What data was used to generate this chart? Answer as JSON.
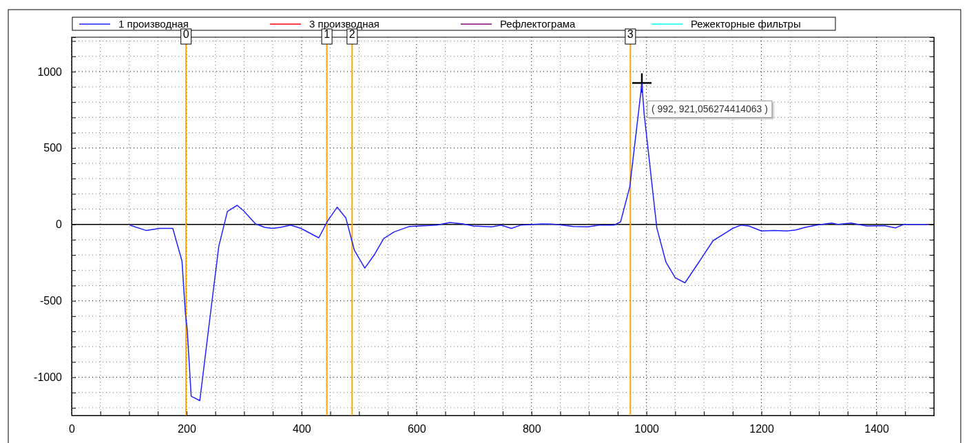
{
  "chart_data": {
    "type": "line",
    "xlim": [
      0,
      1500
    ],
    "ylim": [
      -1250,
      1225
    ],
    "xticks": [
      0,
      {
        "value": 50,
        "label": null
      },
      200,
      {
        "value": 100,
        "label": null
      },
      {
        "value": 150,
        "label": null
      },
      {
        "value": 250,
        "label": null
      },
      {
        "value": 300,
        "label": null
      },
      {
        "value": 350,
        "label": null
      },
      400,
      {
        "value": 450,
        "label": null
      },
      {
        "value": 500,
        "label": null
      },
      {
        "value": 550,
        "label": null
      },
      600,
      {
        "value": 650,
        "label": null
      },
      {
        "value": 700,
        "label": null
      },
      {
        "value": 750,
        "label": null
      },
      800,
      {
        "value": 850,
        "label": null
      },
      {
        "value": 900,
        "label": null
      },
      {
        "value": 950,
        "label": null
      },
      1000,
      {
        "value": 1050,
        "label": null
      },
      {
        "value": 1100,
        "label": null
      },
      {
        "value": 1150,
        "label": null
      },
      1200,
      {
        "value": 1250,
        "label": null
      },
      {
        "value": 1300,
        "label": null
      },
      {
        "value": 1350,
        "label": null
      },
      1400,
      {
        "value": 1450,
        "label": null
      },
      {
        "value": 1500,
        "label": null
      }
    ],
    "yticks": [
      {
        "value": -1200,
        "label": null
      },
      {
        "value": -1100,
        "label": null
      },
      -1000,
      {
        "value": -900,
        "label": null
      },
      {
        "value": -800,
        "label": null
      },
      {
        "value": -700,
        "label": null
      },
      {
        "value": -600,
        "label": null
      },
      -500,
      {
        "value": -400,
        "label": null
      },
      {
        "value": -300,
        "label": null
      },
      {
        "value": -200,
        "label": null
      },
      {
        "value": -100,
        "label": null
      },
      0,
      {
        "value": 100,
        "label": null
      },
      {
        "value": 200,
        "label": null
      },
      {
        "value": 300,
        "label": null
      },
      {
        "value": 400,
        "label": null
      },
      500,
      {
        "value": 600,
        "label": null
      },
      {
        "value": 700,
        "label": null
      },
      {
        "value": 800,
        "label": null
      },
      {
        "value": 900,
        "label": null
      },
      1000,
      {
        "value": 1100,
        "label": null
      },
      {
        "value": 1200,
        "label": null
      }
    ],
    "grid": true,
    "legend": "top",
    "line_style": "solid",
    "marker": "none",
    "series": [
      {
        "name": "1 производная",
        "color": "#2020ff",
        "x": [
          101,
          130,
          153,
          176,
          192,
          198,
          201,
          208,
          223,
          240,
          256,
          271,
          288,
          299,
          320,
          336,
          349,
          363,
          381,
          399,
          430,
          445,
          462,
          477,
          492,
          510,
          527,
          543,
          561,
          587,
          635,
          658,
          681,
          699,
          731,
          747,
          765,
          781,
          818,
          836,
          854,
          873,
          898,
          918,
          943,
          955,
          971,
          992,
          996,
          1018,
          1034,
          1050,
          1067,
          1091,
          1116,
          1137,
          1150,
          1164,
          1178,
          1200,
          1223,
          1244,
          1260,
          1276,
          1296,
          1322,
          1333,
          1356,
          1383,
          1415,
          1433,
          1447,
          1470,
          1490
        ],
        "values": [
          -5,
          -40,
          -26,
          -26,
          -240,
          -586,
          -682,
          -1124,
          -1153,
          -630,
          -144,
          85,
          125,
          90,
          3,
          -19,
          -26,
          -19,
          -5,
          -26,
          -88,
          21,
          113,
          43,
          -170,
          -286,
          -196,
          -92,
          -49,
          -14,
          -5,
          12,
          3,
          -10,
          -16,
          -5,
          -26,
          -5,
          3,
          2,
          -5,
          -14,
          -16,
          -5,
          -5,
          17,
          246,
          921,
          723,
          -23,
          -248,
          -349,
          -382,
          -248,
          -106,
          -57,
          -26,
          -5,
          -10,
          -43,
          -40,
          -43,
          -36,
          -19,
          -5,
          9,
          0,
          9,
          -10,
          -9,
          -23,
          0,
          0,
          0
        ]
      },
      {
        "name": "3 производная",
        "color": "#ff0000"
      },
      {
        "name": "Рефлектограма",
        "color": "#800080"
      },
      {
        "name": "Режекторные фильтры",
        "color": "#00ffff"
      }
    ],
    "ref_lines": [
      {
        "axis": "y",
        "value": 0,
        "label": null,
        "color": "#000000"
      },
      {
        "axis": "x",
        "value": 199,
        "label": null,
        "color": "#ffa500"
      },
      {
        "axis": "x",
        "value": 444,
        "label": null,
        "color": "#ffa500"
      },
      {
        "axis": "x",
        "value": 488,
        "label": null,
        "color": "#ffa500"
      },
      {
        "axis": "x",
        "value": 972,
        "label": null,
        "color": "#ffa500"
      }
    ],
    "annotations": [
      {
        "text": "0",
        "x": 199
      },
      {
        "text": "1",
        "x": 444
      },
      {
        "text": "2",
        "x": 488
      },
      {
        "text": "3",
        "x": 972
      },
      {
        "text": "( 992, 921,056274414063 )",
        "x": 992,
        "y": 921
      }
    ]
  }
}
